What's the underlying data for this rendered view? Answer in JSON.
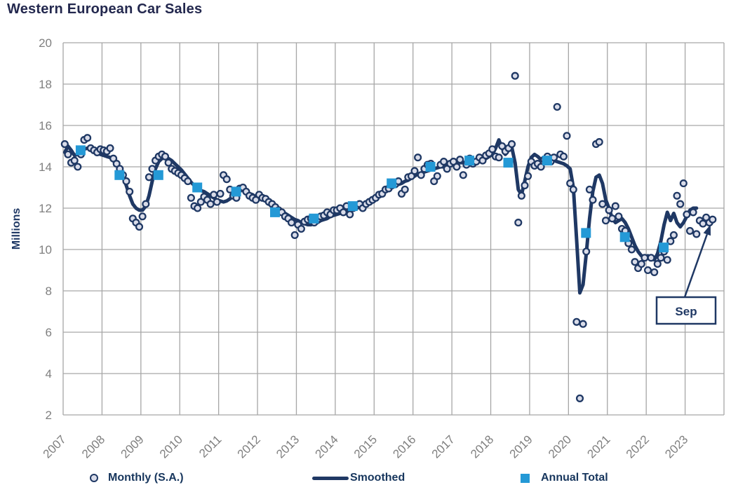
{
  "colors": {
    "navy": "#1F3864",
    "title_text": "#23284E",
    "annual_blue": "#2499D6",
    "point_fill": "#D9DCE9",
    "grid": "#A6A6A6",
    "tick_text": "#7F7F7F",
    "background": "#FFFFFF"
  },
  "chart_data": {
    "type": "combo",
    "title": "Western European Car Sales",
    "ylabel": "Millions",
    "ylim": [
      2,
      20
    ],
    "ytick_step": 2,
    "yticks": [
      "2",
      "4",
      "6",
      "8",
      "10",
      "12",
      "14",
      "16",
      "18",
      "20"
    ],
    "xlim": [
      2007,
      2024
    ],
    "xtick_labels": [
      "2007",
      "2008",
      "2009",
      "2010",
      "2011",
      "2012",
      "2013",
      "2014",
      "2015",
      "2016",
      "2017",
      "2018",
      "2019",
      "2020",
      "2021",
      "2022",
      "2023"
    ],
    "grid": true,
    "legend_position": "bottom",
    "annotation": {
      "text": "Sep",
      "target": "2023-09",
      "target_value": 11.45
    },
    "series": [
      {
        "name": "Monthly (S.A.)",
        "type": "scatter",
        "start_year": 2007,
        "frequency": "monthly",
        "values": [
          15.1,
          14.6,
          14.2,
          14.3,
          14.0,
          14.6,
          15.3,
          15.4,
          14.9,
          14.8,
          14.7,
          14.85,
          14.8,
          14.75,
          14.9,
          14.4,
          14.15,
          13.9,
          13.6,
          13.3,
          12.8,
          11.5,
          11.3,
          11.1,
          11.6,
          12.2,
          13.5,
          13.9,
          14.3,
          14.5,
          14.6,
          14.5,
          14.2,
          13.9,
          13.8,
          13.7,
          13.6,
          13.45,
          13.3,
          12.5,
          12.1,
          12.0,
          12.3,
          12.55,
          12.4,
          12.2,
          12.65,
          12.3,
          12.7,
          13.6,
          13.4,
          12.9,
          12.6,
          12.5,
          12.95,
          13.0,
          12.8,
          12.6,
          12.5,
          12.4,
          12.65,
          12.5,
          12.45,
          12.3,
          12.2,
          12.05,
          11.9,
          11.8,
          11.6,
          11.5,
          11.3,
          10.7,
          11.2,
          11.0,
          11.35,
          11.45,
          11.5,
          11.3,
          11.45,
          11.6,
          11.65,
          11.8,
          11.7,
          11.9,
          11.9,
          12.0,
          11.8,
          12.1,
          11.7,
          12.0,
          12.1,
          12.2,
          12.0,
          12.2,
          12.3,
          12.4,
          12.5,
          12.65,
          12.7,
          12.9,
          12.95,
          13.1,
          13.15,
          13.3,
          12.7,
          12.9,
          13.5,
          13.55,
          13.8,
          14.45,
          13.6,
          13.9,
          14.1,
          14.15,
          13.3,
          13.55,
          14.1,
          14.25,
          13.9,
          14.15,
          14.25,
          14.0,
          14.35,
          13.6,
          14.1,
          14.4,
          14.15,
          14.25,
          14.45,
          14.3,
          14.55,
          14.65,
          14.85,
          14.5,
          14.45,
          15.0,
          14.75,
          14.9,
          15.1,
          18.4,
          11.3,
          12.6,
          13.1,
          13.55,
          14.25,
          14.05,
          14.15,
          14.0,
          14.35,
          14.5,
          14.25,
          14.45,
          16.9,
          14.6,
          14.5,
          15.5,
          13.2,
          12.9,
          6.5,
          2.8,
          6.4,
          9.9,
          12.9,
          12.4,
          15.1,
          15.2,
          12.2,
          11.4,
          11.9,
          11.5,
          12.1,
          11.6,
          11.0,
          10.9,
          10.3,
          10.0,
          9.4,
          9.1,
          9.3,
          9.6,
          9.0,
          9.6,
          8.9,
          9.3,
          9.6,
          9.9,
          9.5,
          10.4,
          10.7,
          12.6,
          12.2,
          13.2,
          11.7,
          10.9,
          11.8,
          10.75,
          11.4,
          11.25,
          11.55,
          11.3,
          11.45
        ]
      },
      {
        "name": "Smoothed",
        "type": "line",
        "start_year": 2007,
        "frequency": "monthly",
        "values": [
          14.7,
          15.0,
          14.8,
          14.55,
          14.6,
          14.75,
          14.85,
          14.9,
          14.85,
          14.8,
          14.7,
          14.6,
          14.55,
          14.5,
          14.45,
          14.3,
          14.1,
          13.8,
          13.5,
          13.1,
          12.6,
          12.2,
          12.0,
          11.9,
          11.9,
          12.1,
          12.6,
          13.3,
          13.9,
          14.25,
          14.4,
          14.45,
          14.4,
          14.3,
          14.15,
          14.0,
          13.85,
          13.65,
          13.45,
          13.25,
          13.1,
          12.95,
          12.85,
          12.8,
          12.7,
          12.6,
          12.5,
          12.4,
          12.35,
          12.3,
          12.35,
          12.45,
          12.6,
          12.75,
          12.85,
          12.85,
          12.8,
          12.7,
          12.65,
          12.55,
          12.5,
          12.45,
          12.35,
          12.25,
          12.15,
          12.05,
          11.95,
          11.85,
          11.75,
          11.65,
          11.55,
          11.45,
          11.4,
          11.3,
          11.25,
          11.2,
          11.2,
          11.25,
          11.3,
          11.4,
          11.45,
          11.5,
          11.6,
          11.65,
          11.7,
          11.75,
          11.8,
          11.85,
          11.9,
          11.95,
          12.0,
          12.05,
          12.1,
          12.2,
          12.3,
          12.4,
          12.5,
          12.6,
          12.7,
          12.8,
          12.9,
          13.0,
          13.1,
          13.15,
          13.2,
          13.3,
          13.35,
          13.45,
          13.55,
          13.65,
          13.7,
          13.75,
          13.8,
          13.85,
          13.9,
          13.95,
          14.0,
          14.0,
          14.05,
          14.1,
          14.1,
          14.15,
          14.2,
          14.2,
          14.25,
          14.3,
          14.3,
          14.3,
          14.35,
          14.35,
          14.4,
          14.5,
          14.6,
          14.9,
          15.3,
          14.9,
          14.6,
          14.8,
          14.95,
          14.2,
          12.9,
          12.65,
          13.3,
          14.0,
          14.45,
          14.6,
          14.5,
          14.35,
          14.3,
          14.25,
          14.3,
          14.3,
          14.25,
          14.2,
          14.15,
          14.05,
          13.9,
          13.0,
          10.5,
          7.9,
          8.3,
          9.8,
          11.5,
          12.8,
          13.5,
          13.6,
          13.2,
          12.4,
          12.0,
          11.5,
          11.3,
          11.4,
          11.5,
          11.3,
          11.0,
          10.6,
          10.2,
          9.9,
          9.7,
          9.6,
          9.7,
          9.6,
          9.5,
          9.8,
          10.4,
          11.2,
          11.8,
          11.4,
          11.75,
          11.3,
          11.1,
          11.3,
          11.6,
          11.9,
          12.0,
          12.0
        ]
      },
      {
        "name": "Annual Total",
        "type": "scatter-square",
        "years": [
          2007,
          2008,
          2009,
          2010,
          2011,
          2012,
          2013,
          2014,
          2015,
          2016,
          2017,
          2018,
          2019,
          2020,
          2021,
          2022
        ],
        "values": [
          14.8,
          13.6,
          13.6,
          13.0,
          12.8,
          11.8,
          11.5,
          12.1,
          13.2,
          14.0,
          14.3,
          14.2,
          14.3,
          10.8,
          10.6,
          10.1
        ]
      }
    ]
  }
}
